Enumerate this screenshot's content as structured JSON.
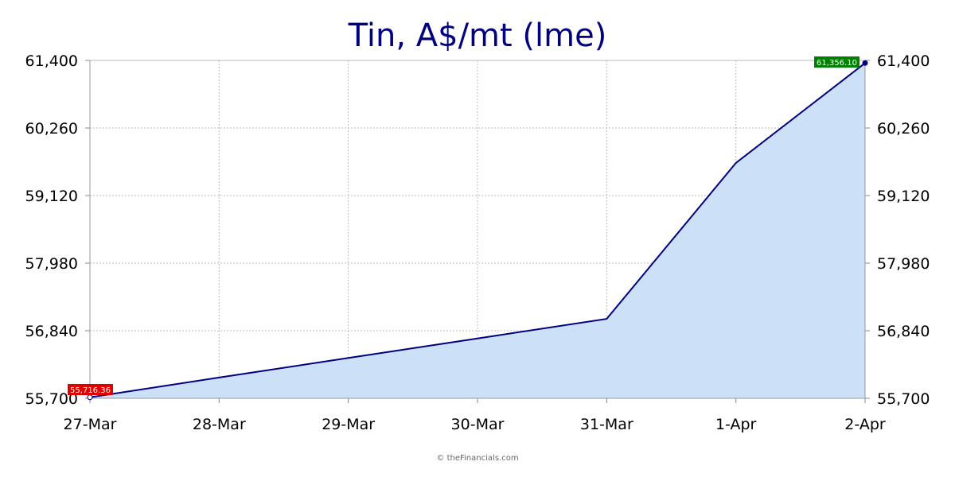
{
  "chart_data": {
    "type": "area",
    "title": "Tin, A$/mt (lme)",
    "xlabel": "",
    "ylabel": "",
    "categories": [
      "27-Mar",
      "28-Mar",
      "29-Mar",
      "30-Mar",
      "31-Mar",
      "1-Apr",
      "2-Apr"
    ],
    "series": [
      {
        "values": [
          55716.36,
          56050,
          56380,
          56710,
          57040,
          59670,
          61356.1
        ]
      }
    ],
    "ylim": [
      55700,
      61400
    ],
    "yticks": [
      55700,
      56840,
      57980,
      59120,
      60260,
      61400
    ],
    "ytick_labels": [
      "55,700",
      "56,840",
      "57,980",
      "59,120",
      "60,260",
      "61,400"
    ],
    "y_axis_both_sides": true,
    "grid": true,
    "legend": "none",
    "first_value_label": "55,716.36",
    "last_value_label": "61,356.10",
    "colors": {
      "title": "#000080",
      "line": "#000080",
      "fill": "#cce0f7",
      "grid": "#bbbbbb",
      "first_badge": "#e00000",
      "last_badge": "#008000"
    }
  },
  "footer": {
    "copyright": "© theFinancials.com"
  }
}
